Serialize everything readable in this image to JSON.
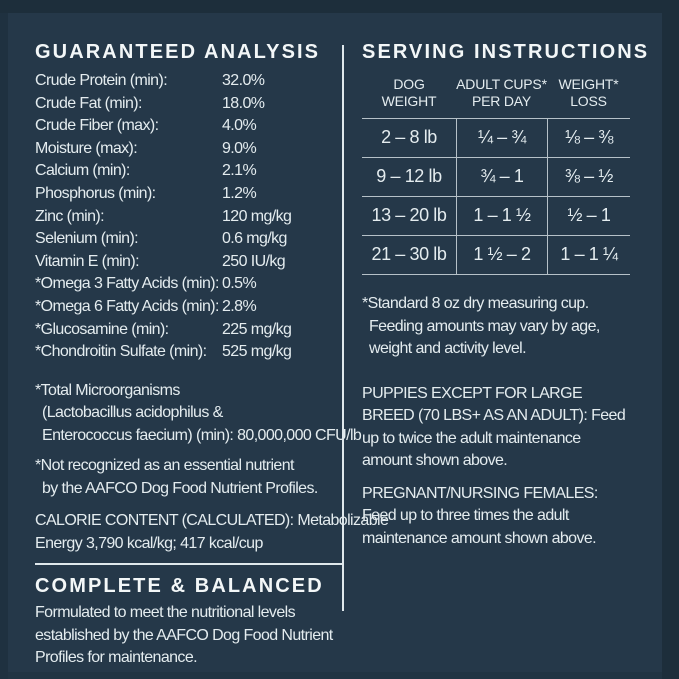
{
  "colors": {
    "panel_bg": "#253849",
    "panel_edge": "#1d2e3b",
    "heading_text": "#f3f7f8",
    "body_text": "#e4ecef",
    "rule": "#dfe8ec"
  },
  "guaranteed_analysis": {
    "title": "GUARANTEED ANALYSIS",
    "rows": [
      {
        "label": "Crude Protein (min):",
        "value": "32.0%"
      },
      {
        "label": "Crude Fat (min):",
        "value": "18.0%"
      },
      {
        "label": "Crude Fiber (max):",
        "value": "4.0%"
      },
      {
        "label": "Moisture (max):",
        "value": "9.0%"
      },
      {
        "label": "Calcium (min):",
        "value": "2.1%"
      },
      {
        "label": "Phosphorus (min):",
        "value": "1.2%"
      },
      {
        "label": "Zinc (min):",
        "value": "120 mg/kg"
      },
      {
        "label": "Selenium (min):",
        "value": "0.6 mg/kg"
      },
      {
        "label": "Vitamin E (min):",
        "value": "250 IU/kg"
      },
      {
        "label": "*Omega 3 Fatty Acids (min):",
        "value": "0.5%"
      },
      {
        "label": "*Omega 6 Fatty Acids (min):",
        "value": "2.8%"
      },
      {
        "label": "*Glucosamine (min):",
        "value": "225 mg/kg"
      },
      {
        "label": "*Chondroitin Sulfate (min):",
        "value": "525 mg/kg"
      }
    ],
    "microorganisms_lines": {
      "l1": "*Total Microorganisms",
      "l2": "(Lactobacillus acidophilus &",
      "l3": "Enterococcus faecium) (min): 80,000,000 CFU/lb"
    },
    "not_recognized_lines": {
      "l1": "*Not recognized as an essential nutrient",
      "l2": "by the AAFCO Dog Food Nutrient Profiles."
    },
    "calorie_lines": {
      "l1": "CALORIE CONTENT (CALCULATED): Metabolizable",
      "l2": "Energy 3,790 kcal/kg; 417 kcal/cup"
    }
  },
  "complete_balanced": {
    "title": "COMPLETE & BALANCED",
    "body": "Formulated to meet the nutritional levels established by the AAFCO Dog Food Nutrient Profiles for maintenance."
  },
  "serving_instructions": {
    "title": "SERVING INSTRUCTIONS",
    "table": {
      "headers": [
        {
          "line1": "DOG",
          "line2": "WEIGHT"
        },
        {
          "line1": "ADULT CUPS*",
          "line2": "PER DAY"
        },
        {
          "line1": "WEIGHT*",
          "line2": "LOSS"
        }
      ],
      "rows": [
        {
          "weight": "2 – 8 lb",
          "cups": "¼ – ¾",
          "loss": "⅛ – ⅜"
        },
        {
          "weight": "9 – 12 lb",
          "cups": "¾ – 1",
          "loss": "⅜ – ½"
        },
        {
          "weight": "13 – 20 lb",
          "cups": "1 – 1 ½",
          "loss": "½ – 1"
        },
        {
          "weight": "21 – 30 lb",
          "cups": "1 ½ – 2",
          "loss": "1 – 1 ¼"
        }
      ]
    },
    "footnote": "*Standard 8 oz dry measuring cup. Feeding amounts may vary by age, weight and activity level.",
    "puppies": "PUPPIES EXCEPT FOR LARGE BREED (70 LBS+ AS AN ADULT): Feed up to twice the adult maintenance amount shown above.",
    "pregnant": "PREGNANT/NURSING FEMALES: Feed up to three times the adult maintenance amount shown above."
  }
}
